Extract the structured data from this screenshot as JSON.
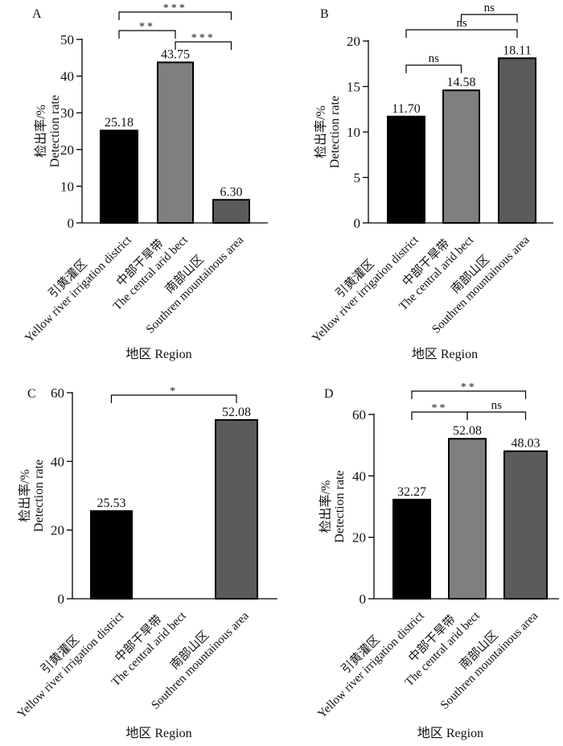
{
  "chart_data": [
    {
      "type": "bar",
      "panel": "A",
      "ylabel_cn": "检出率/%",
      "ylabel_en": "Detection rate",
      "xlabel": "地区 Region",
      "categories": [
        {
          "cn": "引黄灌区",
          "en": "Yellow river irrigation district"
        },
        {
          "cn": "中部干旱带",
          "en": "The central arid bect"
        },
        {
          "cn": "南部山区",
          "en": "Southren mountainous area"
        }
      ],
      "values": [
        25.18,
        43.75,
        6.3
      ],
      "value_labels": [
        "25.18",
        "43.75",
        "6.30"
      ],
      "ylim": [
        0,
        50
      ],
      "yticks": [
        0,
        10,
        20,
        30,
        40,
        50
      ],
      "significance": [
        {
          "from": 0,
          "to": 2,
          "label": "***"
        },
        {
          "from": 0,
          "to": 1,
          "label": "**"
        },
        {
          "from": 1,
          "to": 2,
          "label": "***"
        }
      ]
    },
    {
      "type": "bar",
      "panel": "B",
      "ylabel_cn": "检出率/%",
      "ylabel_en": "Detection rate",
      "xlabel": "地区 Region",
      "categories": [
        {
          "cn": "引黄灌区",
          "en": "Yellow river irrigation district"
        },
        {
          "cn": "中部干旱带",
          "en": "The central arid bect"
        },
        {
          "cn": "南部山区",
          "en": "Southren mountainous area"
        }
      ],
      "values": [
        11.7,
        14.58,
        18.11
      ],
      "value_labels": [
        "11.70",
        "14.58",
        "18.11"
      ],
      "ylim": [
        0,
        20
      ],
      "yticks": [
        0,
        5,
        10,
        15,
        20
      ],
      "significance": [
        {
          "from": 1,
          "to": 2,
          "label": "ns"
        },
        {
          "from": 0,
          "to": 2,
          "label": "ns"
        },
        {
          "from": 0,
          "to": 1,
          "label": "ns"
        }
      ]
    },
    {
      "type": "bar",
      "panel": "C",
      "ylabel_cn": "检出率/%",
      "ylabel_en": "Detection rate",
      "xlabel": "地区 Region",
      "categories": [
        {
          "cn": "引黄灌区",
          "en": "Yellow river irrigation district"
        },
        {
          "cn": "中部干旱带",
          "en": "The central arid bect"
        },
        {
          "cn": "南部山区",
          "en": "Southren mountainous area"
        }
      ],
      "values": [
        25.53,
        null,
        52.08
      ],
      "value_labels": [
        "25.53",
        "",
        "52.08"
      ],
      "ylim": [
        0,
        60
      ],
      "yticks": [
        0,
        20,
        40,
        60
      ],
      "significance": [
        {
          "from": 0,
          "to": 2,
          "label": "*"
        }
      ]
    },
    {
      "type": "bar",
      "panel": "D",
      "ylabel_cn": "检出率/%",
      "ylabel_en": "Detection rate",
      "xlabel": "地区 Region",
      "categories": [
        {
          "cn": "引黄灌区",
          "en": "Yellow river irrigation district"
        },
        {
          "cn": "中部干旱带",
          "en": "The central arid bect"
        },
        {
          "cn": "南部山区",
          "en": "Southren mountainous area"
        }
      ],
      "values": [
        32.27,
        52.08,
        48.03
      ],
      "value_labels": [
        "32.27",
        "52.08",
        "48.03"
      ],
      "ylim": [
        0,
        60
      ],
      "yticks": [
        0,
        20,
        40,
        60
      ],
      "significance": [
        {
          "from": 0,
          "to": 2,
          "label": "**"
        },
        {
          "from": 0,
          "to": 1,
          "label": "**"
        },
        {
          "from": 1,
          "to": 2,
          "label": "ns"
        }
      ]
    }
  ],
  "colors": {
    "bar1": "#000000",
    "bar2": "#7f7f7f",
    "bar3": "#5b5b5b",
    "axis": "#000000"
  }
}
